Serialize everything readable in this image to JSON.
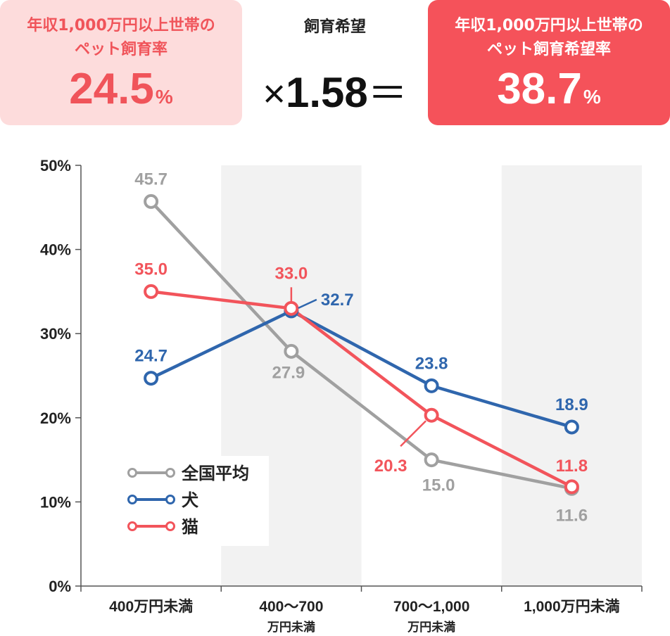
{
  "header": {
    "left_box": {
      "line1": "年収1,000万円以上世帯の",
      "line2": "ペット飼育率",
      "value": "24.5",
      "unit": "%"
    },
    "middle": {
      "label": "飼育希望",
      "times": "×",
      "multiplier": "1.58",
      "equals": "＝"
    },
    "right_box": {
      "line1": "年収1,000万円以上世帯の",
      "line2": "ペット飼育希望率",
      "value": "38.7",
      "unit": "%"
    }
  },
  "colors": {
    "gray": "#a0a0a0",
    "blue": "#2f66ad",
    "red": "#f2545b",
    "band": "#f2f2f2",
    "box_light": "#fddcdc",
    "box_dark": "#f5525a"
  },
  "chart_data": {
    "type": "line",
    "categories": [
      {
        "line1": "400万円未満",
        "line2": ""
      },
      {
        "line1": "400～700",
        "line2": "万円未満"
      },
      {
        "line1": "700～1,000",
        "line2": "万円未満"
      },
      {
        "line1": "1,000万円未満",
        "line2": ""
      }
    ],
    "y_ticks": [
      "0%",
      "10%",
      "20%",
      "30%",
      "40%",
      "50%"
    ],
    "ylim": [
      0,
      50
    ],
    "legend_position": "bottom-left",
    "series": [
      {
        "name": "全国平均",
        "color": "#a0a0a0",
        "values": [
          45.7,
          27.9,
          15.0,
          11.6
        ],
        "labels": [
          "45.7",
          "27.9",
          "15.0",
          "11.6"
        ]
      },
      {
        "name": "犬",
        "color": "#2f66ad",
        "values": [
          24.7,
          32.7,
          23.8,
          18.9
        ],
        "labels": [
          "24.7",
          "32.7",
          "23.8",
          "18.9"
        ]
      },
      {
        "name": "猫",
        "color": "#f2545b",
        "values": [
          35.0,
          33.0,
          20.3,
          11.8
        ],
        "labels": [
          "35.0",
          "33.0",
          "20.3",
          "11.8"
        ]
      }
    ]
  }
}
